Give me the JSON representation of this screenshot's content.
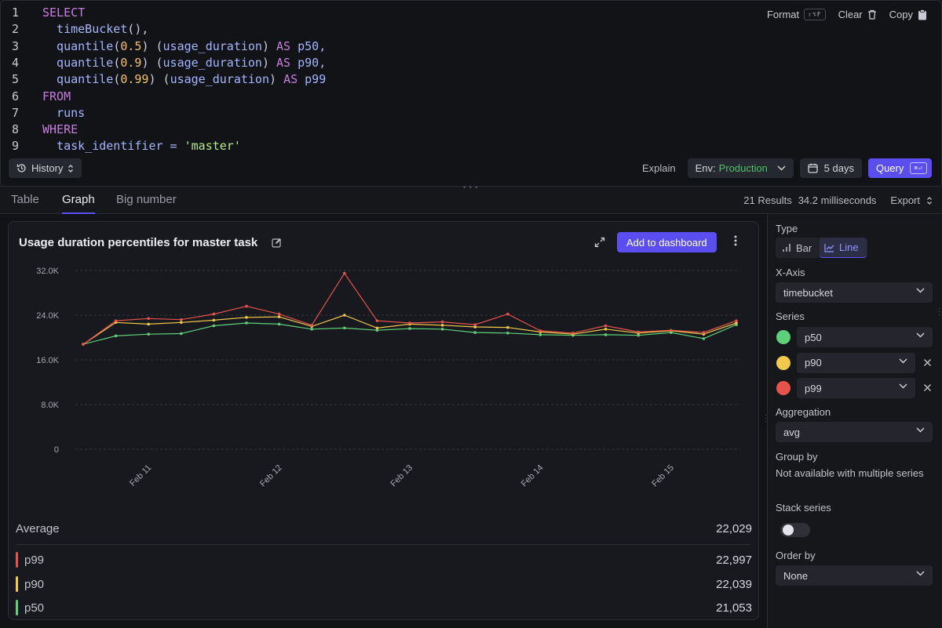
{
  "editor": {
    "line_numbers": [
      "1",
      "2",
      "3",
      "4",
      "5",
      "6",
      "7",
      "8",
      "9"
    ],
    "lines": [
      [
        {
          "t": "SELECT",
          "c": "kw"
        }
      ],
      [
        {
          "t": "  timeBucket",
          "c": "fn"
        },
        {
          "t": "(),",
          "c": "pl"
        }
      ],
      [
        {
          "t": "  quantile",
          "c": "fn"
        },
        {
          "t": "(",
          "c": "pl"
        },
        {
          "t": "0.5",
          "c": "num"
        },
        {
          "t": ") (",
          "c": "pl"
        },
        {
          "t": "usage_duration",
          "c": "fn"
        },
        {
          "t": ") ",
          "c": "pl"
        },
        {
          "t": "AS",
          "c": "kw"
        },
        {
          "t": " p50,",
          "c": "fn"
        }
      ],
      [
        {
          "t": "  quantile",
          "c": "fn"
        },
        {
          "t": "(",
          "c": "pl"
        },
        {
          "t": "0.9",
          "c": "num"
        },
        {
          "t": ") (",
          "c": "pl"
        },
        {
          "t": "usage_duration",
          "c": "fn"
        },
        {
          "t": ") ",
          "c": "pl"
        },
        {
          "t": "AS",
          "c": "kw"
        },
        {
          "t": " p90,",
          "c": "fn"
        }
      ],
      [
        {
          "t": "  quantile",
          "c": "fn"
        },
        {
          "t": "(",
          "c": "pl"
        },
        {
          "t": "0.99",
          "c": "num"
        },
        {
          "t": ") (",
          "c": "pl"
        },
        {
          "t": "usage_duration",
          "c": "fn"
        },
        {
          "t": ") ",
          "c": "pl"
        },
        {
          "t": "AS",
          "c": "kw"
        },
        {
          "t": " p99",
          "c": "fn"
        }
      ],
      [
        {
          "t": "FROM",
          "c": "kw"
        }
      ],
      [
        {
          "t": "  runs",
          "c": "fn"
        }
      ],
      [
        {
          "t": "WHERE",
          "c": "kw"
        }
      ],
      [
        {
          "t": "  task_identifier = ",
          "c": "fn"
        },
        {
          "t": "'master'",
          "c": "str"
        }
      ]
    ],
    "actions": {
      "format_label": "Format",
      "format_shortcut": "⇧⌥F",
      "clear_label": "Clear",
      "copy_label": "Copy"
    }
  },
  "toolbar": {
    "history_label": "History",
    "explain_label": "Explain",
    "env_prefix": "Env:",
    "env_value": "Production",
    "range_label": "5 days",
    "query_label": "Query",
    "query_shortcut": "⌘⏎"
  },
  "tabs": [
    {
      "label": "Table",
      "active": false
    },
    {
      "label": "Graph",
      "active": true
    },
    {
      "label": "Big number",
      "active": false
    }
  ],
  "results": {
    "count": "21 Results",
    "duration": "34.2 milliseconds",
    "export_label": "Export"
  },
  "chart_panel": {
    "title": "Usage duration percentiles for master task",
    "add_dashboard_label": "Add to dashboard",
    "average_label": "Average",
    "average_value": "22,029",
    "legend": [
      {
        "name": "p99",
        "value": "22,997",
        "color": "#e5534b"
      },
      {
        "name": "p90",
        "value": "22,039",
        "color": "#f2c94c"
      },
      {
        "name": "p50",
        "value": "21,053",
        "color": "#5fd07a"
      }
    ]
  },
  "chart_data": {
    "type": "line",
    "title": "Usage duration percentiles for master task",
    "xlabel": "",
    "ylabel": "",
    "ylim": [
      0,
      32000
    ],
    "y_ticks": [
      0,
      8000,
      16000,
      24000,
      32000
    ],
    "y_tick_labels": [
      "0",
      "8.0K",
      "16.0K",
      "24.0K",
      "32.0K"
    ],
    "x_tick_labels": [
      "Feb 11",
      "Feb 12",
      "Feb 13",
      "Feb 14",
      "Feb 15"
    ],
    "x_tick_positions": [
      2,
      6,
      10,
      14,
      18
    ],
    "grid": true,
    "series": [
      {
        "name": "p99",
        "color": "#e5534b",
        "values": [
          18800,
          23000,
          23400,
          23200,
          24200,
          25600,
          24200,
          22200,
          31500,
          23000,
          22600,
          22800,
          22300,
          24200,
          21200,
          20800,
          22100,
          21000,
          21300,
          20900,
          23000
        ]
      },
      {
        "name": "p90",
        "color": "#f2c94c",
        "values": [
          18800,
          22700,
          22400,
          22700,
          23100,
          23600,
          23700,
          22000,
          24000,
          21700,
          22400,
          22200,
          21900,
          21800,
          21000,
          20600,
          21500,
          20800,
          21200,
          20600,
          22600
        ]
      },
      {
        "name": "p50",
        "color": "#5fd07a",
        "values": [
          18800,
          20300,
          20600,
          20700,
          22100,
          22600,
          22400,
          21500,
          21700,
          21300,
          21600,
          21500,
          20900,
          20800,
          20500,
          20400,
          20500,
          20400,
          20900,
          19800,
          22300
        ]
      }
    ]
  },
  "sidebar": {
    "type_label": "Type",
    "type_bar": "Bar",
    "type_line": "Line",
    "xaxis_label": "X-Axis",
    "xaxis_value": "timebucket",
    "series_label": "Series",
    "series": [
      {
        "value": "p50",
        "color": "#5fd07a",
        "removable": false
      },
      {
        "value": "p90",
        "color": "#f2c94c",
        "removable": true
      },
      {
        "value": "p99",
        "color": "#e5534b",
        "removable": true
      }
    ],
    "aggregation_label": "Aggregation",
    "aggregation_value": "avg",
    "groupby_label": "Group by",
    "groupby_note": "Not available with multiple series",
    "stack_label": "Stack series",
    "stack_on": false,
    "orderby_label": "Order by",
    "orderby_value": "None"
  }
}
